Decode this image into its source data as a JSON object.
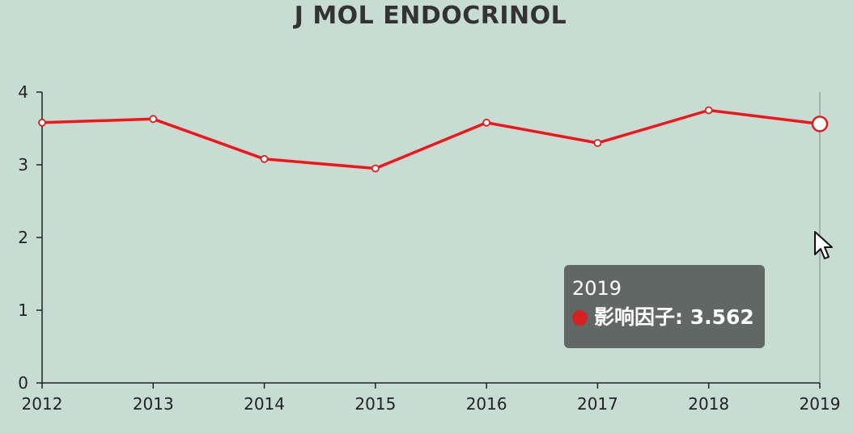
{
  "chart_data": {
    "type": "line",
    "title": "J MOL ENDOCRINOL",
    "categories": [
      "2012",
      "2013",
      "2014",
      "2015",
      "2016",
      "2017",
      "2018",
      "2019"
    ],
    "series": [
      {
        "name": "影响因子",
        "values": [
          3.58,
          3.63,
          3.08,
          2.95,
          3.58,
          3.3,
          3.75,
          3.562
        ]
      }
    ],
    "yticks": [
      "0",
      "1",
      "2",
      "3",
      "4"
    ],
    "ylim": [
      0,
      4
    ],
    "grid": false,
    "line_color": "#d42222"
  },
  "tooltip": {
    "title": "2019",
    "series_label": "影响因子",
    "value": "3.562",
    "marker_color": "#d42222"
  },
  "colors": {
    "background": "#c7dcd3",
    "axis": "#222222",
    "tooltip_bg": "#5c605e"
  }
}
